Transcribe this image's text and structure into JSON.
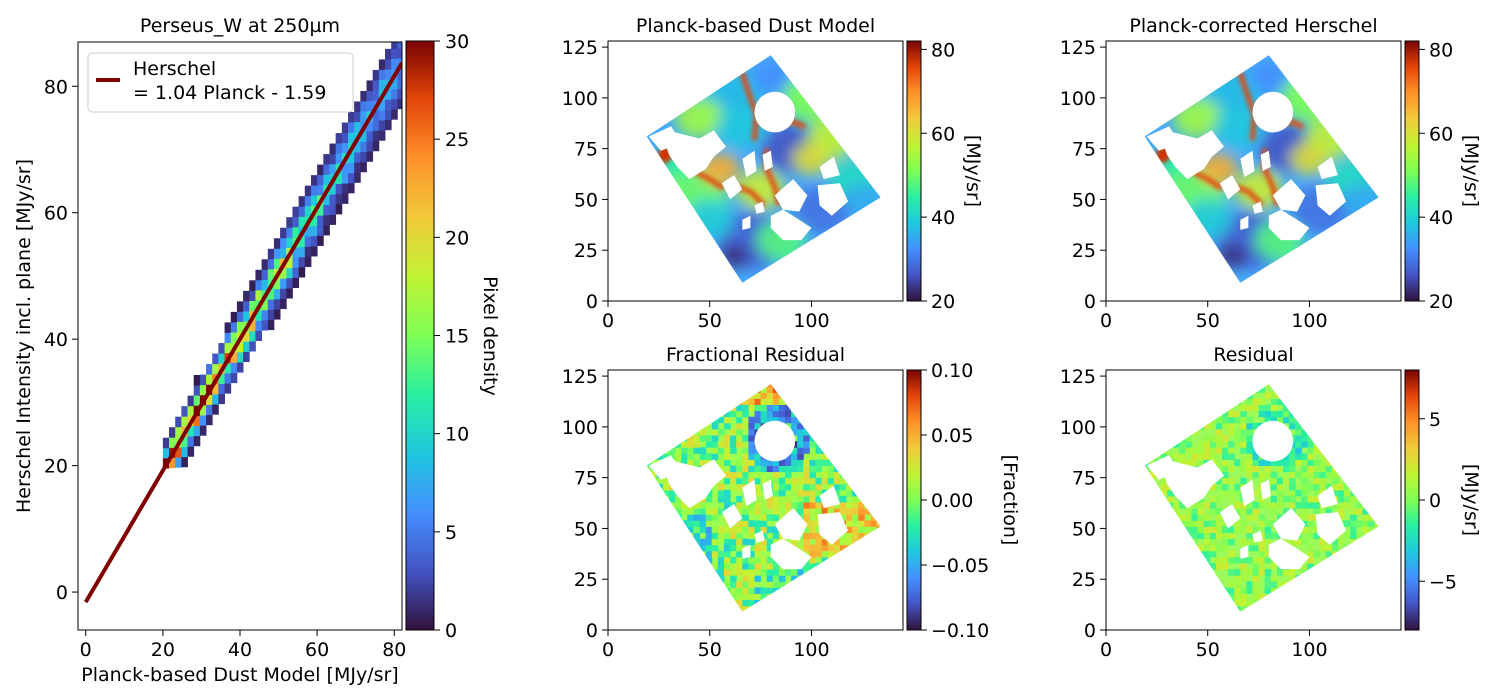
{
  "colormap": "turbo",
  "chart_data": [
    {
      "type": "heatmap",
      "title": "Perseus_W at 250µm",
      "xlabel": "Planck-based Dust Model [MJy/sr]",
      "ylabel": "Herschel Intensity incl. plane [MJy/sr]",
      "xlim": [
        -2,
        82
      ],
      "ylim": [
        -6,
        87
      ],
      "xticks": [
        0,
        20,
        40,
        60,
        80
      ],
      "yticks": [
        0,
        20,
        40,
        60,
        80
      ],
      "fit": {
        "slope": 1.04,
        "intercept": -1.59,
        "x_range": [
          0,
          82
        ],
        "color": "#800000"
      },
      "density_extent": {
        "x": [
          20,
          80
        ],
        "y": [
          19,
          87
        ]
      },
      "legend": {
        "location": "top-left",
        "lines": [
          "Herschel",
          "= 1.04 Planck - 1.59"
        ]
      },
      "colorbar": {
        "label": "Pixel density",
        "range": [
          0,
          30
        ],
        "ticks": [
          0,
          5,
          10,
          15,
          20,
          25,
          30
        ]
      }
    },
    {
      "type": "heatmap",
      "title": "Planck-based Dust Model",
      "xlim": [
        0,
        145
      ],
      "ylim": [
        0,
        128
      ],
      "xticks": [
        0,
        50,
        100
      ],
      "yticks": [
        0,
        25,
        50,
        75,
        100,
        125
      ],
      "colorbar": {
        "label": "[MJy/sr]",
        "range": [
          20,
          82
        ],
        "ticks": [
          "20",
          "40",
          "60",
          "80"
        ]
      }
    },
    {
      "type": "heatmap",
      "title": "Planck-corrected Herschel",
      "xlim": [
        0,
        145
      ],
      "ylim": [
        0,
        128
      ],
      "xticks": [
        0,
        50,
        100
      ],
      "yticks": [
        0,
        25,
        50,
        75,
        100,
        125
      ],
      "colorbar": {
        "label": "[MJy/sr]",
        "range": [
          20,
          82
        ],
        "ticks": [
          "20",
          "40",
          "60",
          "80"
        ]
      }
    },
    {
      "type": "heatmap",
      "title": "Fractional Residual",
      "xlim": [
        0,
        145
      ],
      "ylim": [
        0,
        128
      ],
      "xticks": [
        0,
        50,
        100
      ],
      "yticks": [
        0,
        25,
        50,
        75,
        100,
        125
      ],
      "colorbar": {
        "label": "[Fraction]",
        "range": [
          -0.1,
          0.1
        ],
        "ticks": [
          "0.10",
          "0.05",
          "0.00",
          "−0.05",
          "−0.10"
        ]
      }
    },
    {
      "type": "heatmap",
      "title": "Residual",
      "xlim": [
        0,
        145
      ],
      "ylim": [
        0,
        128
      ],
      "xticks": [
        0,
        50,
        100
      ],
      "yticks": [
        0,
        25,
        50,
        75,
        100,
        125
      ],
      "colorbar": {
        "label": "[MJy/sr]",
        "range": [
          -8,
          8
        ],
        "ticks": [
          "5",
          "0",
          "−5"
        ]
      }
    }
  ]
}
